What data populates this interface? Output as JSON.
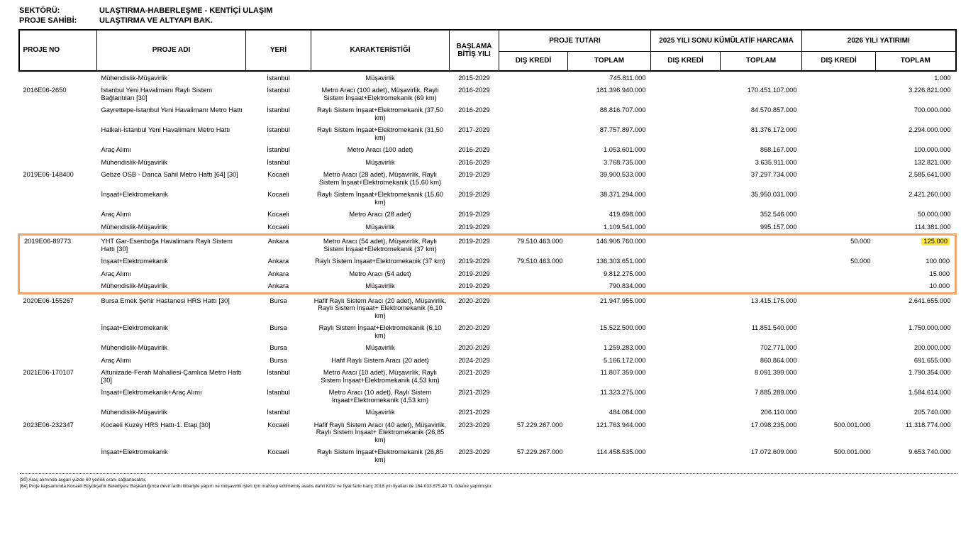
{
  "meta": {
    "sector_label": "SEKTÖRÜ:",
    "sector_value": "ULAŞTIRMA-HABERLEŞME - KENTİÇİ ULAŞIM",
    "owner_label": "PROJE SAHİBİ:",
    "owner_value": "ULAŞTIRMA VE ALTYAPI BAK."
  },
  "table": {
    "columns": {
      "proje_no": "PROJE NO",
      "proje_adi": "PROJE ADI",
      "yeri": "YERİ",
      "karakteristik": "KARAKTERİSTİĞİ",
      "yil": "BAŞLAMA BİTİŞ YILI",
      "proje_tutari": "PROJE TUTARI",
      "harcama": "2025 YILI SONU KÜMÜLATİF HARCAMA",
      "yatirim": "2026 YILI YATIRIMI",
      "dis_kredi": "DIŞ KREDİ",
      "toplam": "TOPLAM"
    },
    "rows": [
      {
        "no": "",
        "adi": "Mühendislik-Müşavirlik",
        "yeri": "İstanbul",
        "kar": "Müşavirlik",
        "yil": "2015-2029",
        "pt_dis": "",
        "pt_top": "745.811.000",
        "h_dis": "",
        "h_top": "",
        "y_dis": "",
        "y_top": "1.000",
        "box": false,
        "marker": false
      },
      {
        "no": "2016E06-2650",
        "adi": "İstanbul Yeni Havalimanı Raylı Sistem Bağlantıları [30]",
        "yeri": "İstanbul",
        "kar": "Metro Aracı (100 adet), Müşavirlik, Raylı Sistem İnşaat+Elektromekanik (69 km)",
        "yil": "2016-2029",
        "pt_dis": "",
        "pt_top": "181.396.940.000",
        "h_dis": "",
        "h_top": "170.451.107.000",
        "y_dis": "",
        "y_top": "3.226.821.000",
        "box": false,
        "marker": false
      },
      {
        "no": "",
        "adi": "Gayrettepe-İstanbul Yeni Havalimanı Metro Hattı",
        "yeri": "İstanbul",
        "kar": "Raylı Sistem İnşaat+Elektromekanik (37,50 km)",
        "yil": "2016-2029",
        "pt_dis": "",
        "pt_top": "88.816.707.000",
        "h_dis": "",
        "h_top": "84.570.857.000",
        "y_dis": "",
        "y_top": "700.000.000",
        "box": false,
        "marker": false
      },
      {
        "no": "",
        "adi": "Halkalı-İstanbul Yeni Havalimanı Metro Hattı",
        "yeri": "İstanbul",
        "kar": "Raylı Sistem İnşaat+Elektromekanik (31,50 km)",
        "yil": "2017-2029",
        "pt_dis": "",
        "pt_top": "87.757.897.000",
        "h_dis": "",
        "h_top": "81.376.172.000",
        "y_dis": "",
        "y_top": "2.294.000.000",
        "box": false,
        "marker": false
      },
      {
        "no": "",
        "adi": "Araç Alımı",
        "yeri": "İstanbul",
        "kar": "Metro Aracı (100 adet)",
        "yil": "2016-2029",
        "pt_dis": "",
        "pt_top": "1.053.601.000",
        "h_dis": "",
        "h_top": "868.167.000",
        "y_dis": "",
        "y_top": "100.000.000",
        "box": false,
        "marker": false
      },
      {
        "no": "",
        "adi": "Mühendislik-Müşavirlik",
        "yeri": "İstanbul",
        "kar": "Müşavirlik",
        "yil": "2016-2029",
        "pt_dis": "",
        "pt_top": "3.768.735.000",
        "h_dis": "",
        "h_top": "3.635.911.000",
        "y_dis": "",
        "y_top": "132.821.000",
        "box": false,
        "marker": false
      },
      {
        "no": "2019E06-148400",
        "adi": "Gebze OSB - Darıca Sahil Metro Hattı [64] [30]",
        "yeri": "Kocaeli",
        "kar": "Metro Aracı (28 adet), Müşavirlik, Raylı Sistem İnşaat+Elektromekanik (15,60 km)",
        "yil": "2019-2029",
        "pt_dis": "",
        "pt_top": "39.900.533.000",
        "h_dis": "",
        "h_top": "37.297.734.000",
        "y_dis": "",
        "y_top": "2.585.641.000",
        "box": false,
        "marker": false
      },
      {
        "no": "",
        "adi": "İnşaat+Elektromekanik",
        "yeri": "Kocaeli",
        "kar": "Raylı Sistem İnşaat+Elektromekanik (15,60 km)",
        "yil": "2019-2029",
        "pt_dis": "",
        "pt_top": "38.371.294.000",
        "h_dis": "",
        "h_top": "35.950.031.000",
        "y_dis": "",
        "y_top": "2.421.260.000",
        "box": false,
        "marker": false
      },
      {
        "no": "",
        "adi": "Araç Alımı",
        "yeri": "Kocaeli",
        "kar": "Metro Aracı (28 adet)",
        "yil": "2019-2029",
        "pt_dis": "",
        "pt_top": "419.698.000",
        "h_dis": "",
        "h_top": "352.546.000",
        "y_dis": "",
        "y_top": "50.000.000",
        "box": false,
        "marker": false
      },
      {
        "no": "",
        "adi": "Mühendislik-Müşavirlik",
        "yeri": "Kocaeli",
        "kar": "Müşavirlik",
        "yil": "2019-2029",
        "pt_dis": "",
        "pt_top": "1.109.541.000",
        "h_dis": "",
        "h_top": "995.157.000",
        "y_dis": "",
        "y_top": "114.381.000",
        "box": false,
        "marker": false
      },
      {
        "no": "2019E06-89773",
        "adi": "YHT Gar-Esenboğa Havalimanı Raylı Sistem Hattı [30]",
        "yeri": "Ankara",
        "kar": "Metro Aracı (54 adet), Müşavirlik, Raylı Sistem İnşaat+Elektromekanik (37 km)",
        "yil": "2019-2029",
        "pt_dis": "79.510.463.000",
        "pt_top": "146.906.760.000",
        "h_dis": "",
        "h_top": "",
        "y_dis": "50.000",
        "y_top": "125.000",
        "box": true,
        "marker": true
      },
      {
        "no": "",
        "adi": "İnşaat+Elektromekanik",
        "yeri": "Ankara",
        "kar": "Raylı Sistem İnşaat+Elektromekanik (37 km)",
        "yil": "2019-2029",
        "pt_dis": "79.510.463.000",
        "pt_top": "136.303.651.000",
        "h_dis": "",
        "h_top": "",
        "y_dis": "50.000",
        "y_top": "100.000",
        "box": true,
        "marker": false
      },
      {
        "no": "",
        "adi": "Araç Alımı",
        "yeri": "Ankara",
        "kar": "Metro Aracı (54 adet)",
        "yil": "2019-2029",
        "pt_dis": "",
        "pt_top": "9.812.275.000",
        "h_dis": "",
        "h_top": "",
        "y_dis": "",
        "y_top": "15.000",
        "box": true,
        "marker": false
      },
      {
        "no": "",
        "adi": "Mühendislik-Müşavirlik",
        "yeri": "Ankara",
        "kar": "Müşavirlik",
        "yil": "2019-2029",
        "pt_dis": "",
        "pt_top": "790.834.000",
        "h_dis": "",
        "h_top": "",
        "y_dis": "",
        "y_top": "10.000",
        "box": true,
        "marker": false
      },
      {
        "no": "2020E06-155267",
        "adi": "Bursa Emek Şehir Hastanesi HRS Hattı [30]",
        "yeri": "Bursa",
        "kar": "Hafif Raylı Sistem Aracı (20 adet), Müşavirlik, Raylı Sistem İnşaat+ Elektromekanik (6,10 km)",
        "yil": "2020-2029",
        "pt_dis": "",
        "pt_top": "21.947.955.000",
        "h_dis": "",
        "h_top": "13.415.175.000",
        "y_dis": "",
        "y_top": "2.641.655.000",
        "box": false,
        "marker": false
      },
      {
        "no": "",
        "adi": "İnşaat+Elektromekanik",
        "yeri": "Bursa",
        "kar": "Raylı Sistem İnşaat+Elektromekanik (6,10 km)",
        "yil": "2020-2029",
        "pt_dis": "",
        "pt_top": "15.522.500.000",
        "h_dis": "",
        "h_top": "11.851.540.000",
        "y_dis": "",
        "y_top": "1.750.000.000",
        "box": false,
        "marker": false
      },
      {
        "no": "",
        "adi": "Mühendislik-Müşavirlik",
        "yeri": "Bursa",
        "kar": "Müşavirlik",
        "yil": "2020-2029",
        "pt_dis": "",
        "pt_top": "1.259.283.000",
        "h_dis": "",
        "h_top": "702.771.000",
        "y_dis": "",
        "y_top": "200.000.000",
        "box": false,
        "marker": false
      },
      {
        "no": "",
        "adi": "Araç Alımı",
        "yeri": "Bursa",
        "kar": "Hafif Raylı Sistem Aracı (20 adet)",
        "yil": "2024-2029",
        "pt_dis": "",
        "pt_top": "5.166.172.000",
        "h_dis": "",
        "h_top": "860.864.000",
        "y_dis": "",
        "y_top": "691.655.000",
        "box": false,
        "marker": false
      },
      {
        "no": "2021E06-170107",
        "adi": "Altunizade-Ferah Mahallesi-Çamlıca Metro Hattı [30]",
        "yeri": "İstanbul",
        "kar": "Metro Aracı (10 adet), Müşavirlik, Raylı Sistem İnşaat+Elektromekanik (4,53 km)",
        "yil": "2021-2029",
        "pt_dis": "",
        "pt_top": "11.807.359.000",
        "h_dis": "",
        "h_top": "8.091.399.000",
        "y_dis": "",
        "y_top": "1.790.354.000",
        "box": false,
        "marker": false
      },
      {
        "no": "",
        "adi": "İnşaat+Elektromekanik+Araç Alımı",
        "yeri": "İstanbul",
        "kar": "Metro Aracı (10 adet), Raylı Sistem İnşaat+Elektromekanik (4,53 km)",
        "yil": "2021-2029",
        "pt_dis": "",
        "pt_top": "11.323.275.000",
        "h_dis": "",
        "h_top": "7.885.289.000",
        "y_dis": "",
        "y_top": "1.584.614.000",
        "box": false,
        "marker": false
      },
      {
        "no": "",
        "adi": "Mühendislik-Müşavirlik",
        "yeri": "İstanbul",
        "kar": "Müşavirlik",
        "yil": "2021-2029",
        "pt_dis": "",
        "pt_top": "484.084.000",
        "h_dis": "",
        "h_top": "206.110.000",
        "y_dis": "",
        "y_top": "205.740.000",
        "box": false,
        "marker": false
      },
      {
        "no": "2023E06-232347",
        "adi": "Kocaeli Kuzey HRS Hattı-1. Etap [30]",
        "yeri": "Kocaeli",
        "kar": "Hafif Raylı Sistem Aracı (40 adet), Müşavirlik, Raylı Sistem İnşaat+ Elektromekanik (26,85 km)",
        "yil": "2023-2029",
        "pt_dis": "57.229.267.000",
        "pt_top": "121.763.944.000",
        "h_dis": "",
        "h_top": "17.098.235.000",
        "y_dis": "500.001.000",
        "y_top": "11.318.774.000",
        "box": false,
        "marker": false
      },
      {
        "no": "",
        "adi": "İnşaat+Elektromekanik",
        "yeri": "Kocaeli",
        "kar": "Raylı Sistem İnşaat+Elektromekanik (26,85 km)",
        "yil": "2023-2029",
        "pt_dis": "57.229.267.000",
        "pt_top": "114.458.535.000",
        "h_dis": "",
        "h_top": "17.072.609.000",
        "y_dis": "500.001.000",
        "y_top": "9.653.740.000",
        "box": false,
        "marker": false
      }
    ]
  },
  "footnotes": [
    "[30] Araç alımında asgari yüzde 60 yerlilik oranı sağlanacaktır.",
    "[64] Proje kapsamında Kocaeli Büyükşehir Belediyesi Başkanlığınca devir tarihi itibariyle yapım ve müşavirlik işleri için mahsup edilmemiş avans dahil KDV ve fiyat farkı hariç 2018 yılı fiyatları ile 184.033.875,40 TL ödeme yapılmıştır."
  ],
  "colors": {
    "highlight_box_border": "#f4a469",
    "marker_yellow": "#ffe63a"
  }
}
